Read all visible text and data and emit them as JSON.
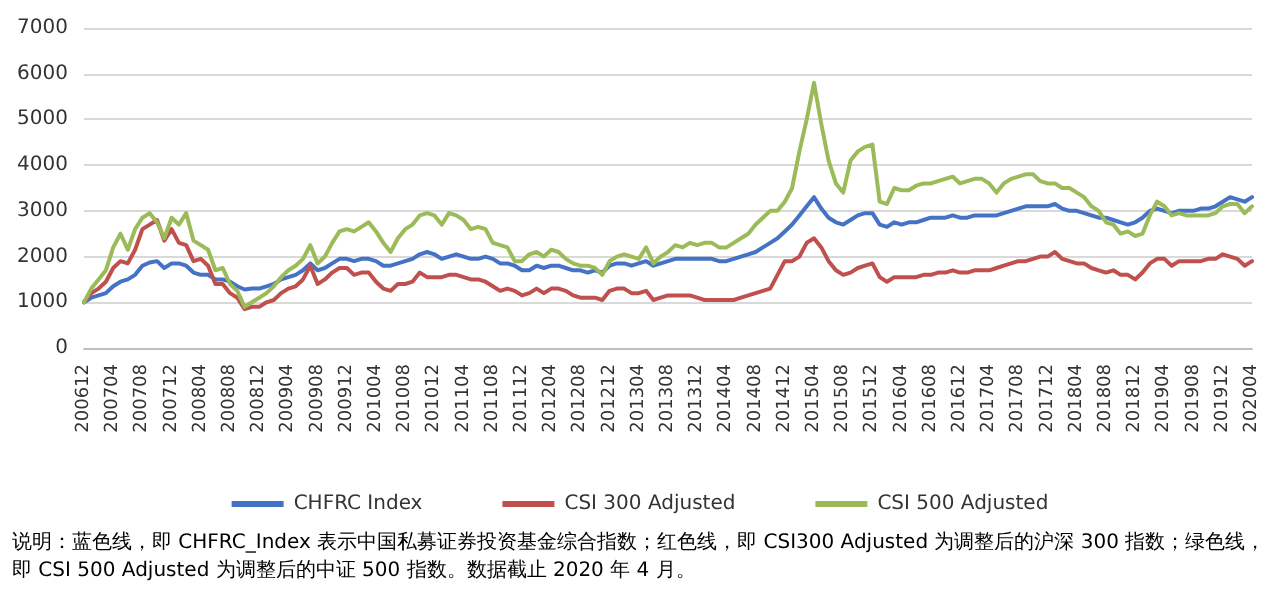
{
  "chart_data": {
    "type": "line",
    "categories": [
      "200612",
      null,
      null,
      null,
      "200704",
      null,
      null,
      null,
      "200708",
      null,
      null,
      null,
      "200712",
      null,
      null,
      null,
      "200804",
      null,
      null,
      null,
      "200808",
      null,
      null,
      null,
      "200812",
      null,
      null,
      null,
      "200904",
      null,
      null,
      null,
      "200908",
      null,
      null,
      null,
      "200912",
      null,
      null,
      null,
      "201004",
      null,
      null,
      null,
      "201008",
      null,
      null,
      null,
      "201012",
      null,
      null,
      null,
      "201104",
      null,
      null,
      null,
      "201108",
      null,
      null,
      null,
      "201112",
      null,
      null,
      null,
      "201204",
      null,
      null,
      null,
      "201208",
      null,
      null,
      null,
      "201212",
      null,
      null,
      null,
      "201304",
      null,
      null,
      null,
      "201308",
      null,
      null,
      null,
      "201312",
      null,
      null,
      null,
      "201404",
      null,
      null,
      null,
      "201408",
      null,
      null,
      null,
      "201412",
      null,
      null,
      null,
      "201504",
      null,
      null,
      null,
      "201508",
      null,
      null,
      null,
      "201512",
      null,
      null,
      null,
      "201604",
      null,
      null,
      null,
      "201608",
      null,
      null,
      null,
      "201612",
      null,
      null,
      null,
      "201704",
      null,
      null,
      null,
      "201708",
      null,
      null,
      null,
      "201712",
      null,
      null,
      null,
      "201804",
      null,
      null,
      null,
      "201808",
      null,
      null,
      null,
      "201812",
      null,
      null,
      null,
      "201904",
      null,
      null,
      null,
      "201908",
      null,
      null,
      null,
      "201912",
      null,
      null,
      null,
      "202004"
    ],
    "series": [
      {
        "name": "CHFRC Index",
        "color": "#4472c4",
        "values": [
          1000,
          1100,
          1150,
          1200,
          1350,
          1450,
          1500,
          1600,
          1800,
          1870,
          1900,
          1750,
          1850,
          1850,
          1800,
          1650,
          1600,
          1600,
          1500,
          1500,
          1450,
          1350,
          1280,
          1300,
          1300,
          1350,
          1400,
          1500,
          1550,
          1600,
          1700,
          1850,
          1700,
          1750,
          1850,
          1950,
          1950,
          1900,
          1950,
          1950,
          1900,
          1800,
          1800,
          1850,
          1900,
          1950,
          2050,
          2100,
          2050,
          1950,
          2000,
          2050,
          2000,
          1950,
          1950,
          2000,
          1950,
          1850,
          1850,
          1800,
          1700,
          1700,
          1800,
          1750,
          1800,
          1800,
          1750,
          1700,
          1700,
          1650,
          1700,
          1650,
          1800,
          1850,
          1850,
          1800,
          1850,
          1900,
          1800,
          1850,
          1900,
          1950,
          1950,
          1950,
          1950,
          1950,
          1950,
          1900,
          1900,
          1950,
          2000,
          2050,
          2100,
          2200,
          2300,
          2400,
          2550,
          2700,
          2900,
          3100,
          3300,
          3050,
          2850,
          2750,
          2700,
          2800,
          2900,
          2950,
          2950,
          2700,
          2650,
          2750,
          2700,
          2750,
          2750,
          2800,
          2850,
          2850,
          2850,
          2900,
          2850,
          2850,
          2900,
          2900,
          2900,
          2900,
          2950,
          3000,
          3050,
          3100,
          3100,
          3100,
          3100,
          3150,
          3050,
          3000,
          3000,
          2950,
          2900,
          2850,
          2850,
          2800,
          2750,
          2700,
          2750,
          2850,
          3000,
          3050,
          3000,
          2950,
          3000,
          3000,
          3000,
          3050,
          3050,
          3100,
          3200,
          3300,
          3250,
          3200,
          3300
        ]
      },
      {
        "name": "CSI 300 Adjusted",
        "color": "#c0504d",
        "values": [
          1000,
          1200,
          1300,
          1450,
          1750,
          1900,
          1850,
          2150,
          2600,
          2700,
          2800,
          2350,
          2600,
          2300,
          2250,
          1900,
          1950,
          1800,
          1400,
          1400,
          1200,
          1100,
          850,
          900,
          900,
          1000,
          1050,
          1200,
          1300,
          1350,
          1500,
          1800,
          1400,
          1500,
          1650,
          1750,
          1750,
          1600,
          1650,
          1650,
          1450,
          1300,
          1250,
          1400,
          1400,
          1450,
          1650,
          1550,
          1550,
          1550,
          1600,
          1600,
          1550,
          1500,
          1500,
          1450,
          1350,
          1250,
          1300,
          1250,
          1150,
          1200,
          1300,
          1200,
          1300,
          1300,
          1250,
          1150,
          1100,
          1100,
          1100,
          1050,
          1250,
          1300,
          1300,
          1200,
          1200,
          1250,
          1050,
          1100,
          1150,
          1150,
          1150,
          1150,
          1100,
          1050,
          1050,
          1050,
          1050,
          1050,
          1100,
          1150,
          1200,
          1250,
          1300,
          1600,
          1900,
          1900,
          2000,
          2300,
          2400,
          2200,
          1900,
          1700,
          1600,
          1650,
          1750,
          1800,
          1850,
          1550,
          1450,
          1550,
          1550,
          1550,
          1550,
          1600,
          1600,
          1650,
          1650,
          1700,
          1650,
          1650,
          1700,
          1700,
          1700,
          1750,
          1800,
          1850,
          1900,
          1900,
          1950,
          2000,
          2000,
          2100,
          1950,
          1900,
          1850,
          1850,
          1750,
          1700,
          1650,
          1700,
          1600,
          1600,
          1500,
          1650,
          1850,
          1950,
          1950,
          1800,
          1900,
          1900,
          1900,
          1900,
          1950,
          1950,
          2050,
          2000,
          1950,
          1800,
          1900
        ]
      },
      {
        "name": "CSI 500 Adjusted",
        "color": "#9bbb59",
        "values": [
          1000,
          1300,
          1500,
          1700,
          2200,
          2500,
          2150,
          2600,
          2850,
          2950,
          2750,
          2400,
          2850,
          2700,
          2950,
          2350,
          2250,
          2150,
          1700,
          1750,
          1400,
          1250,
          900,
          1000,
          1100,
          1200,
          1350,
          1550,
          1700,
          1800,
          1950,
          2250,
          1850,
          2000,
          2300,
          2550,
          2600,
          2550,
          2650,
          2750,
          2550,
          2300,
          2100,
          2400,
          2600,
          2700,
          2900,
          2950,
          2900,
          2700,
          2950,
          2900,
          2800,
          2600,
          2650,
          2600,
          2300,
          2250,
          2200,
          1900,
          1900,
          2050,
          2100,
          2000,
          2150,
          2100,
          1950,
          1850,
          1800,
          1800,
          1750,
          1600,
          1900,
          2000,
          2050,
          2000,
          1950,
          2200,
          1850,
          2000,
          2100,
          2250,
          2200,
          2300,
          2250,
          2300,
          2300,
          2200,
          2200,
          2300,
          2400,
          2500,
          2700,
          2850,
          3000,
          3000,
          3200,
          3500,
          4300,
          5000,
          5800,
          4900,
          4100,
          3600,
          3400,
          4100,
          4300,
          4400,
          4450,
          3200,
          3150,
          3500,
          3450,
          3450,
          3550,
          3600,
          3600,
          3650,
          3700,
          3750,
          3600,
          3650,
          3700,
          3700,
          3600,
          3400,
          3600,
          3700,
          3750,
          3800,
          3800,
          3650,
          3600,
          3600,
          3500,
          3500,
          3400,
          3300,
          3100,
          3000,
          2750,
          2700,
          2500,
          2550,
          2450,
          2500,
          2900,
          3200,
          3100,
          2900,
          2950,
          2900,
          2900,
          2900,
          2900,
          2950,
          3100,
          3150,
          3150,
          2950,
          3100
        ]
      }
    ],
    "ylim": [
      0,
      7000
    ],
    "yticks": [
      0,
      1000,
      2000,
      3000,
      4000,
      5000,
      6000,
      7000
    ],
    "grid": "y",
    "legend": "bottom",
    "marker": "none",
    "line_style": "solid",
    "annotations": [
      "说明：蓝色线，即 CHFRC_Index 表示中国私募证券投资基金综合指数；红色线，即 CSI300 Adjusted 为调整后的沪深 300 指数；绿色线，即 CSI 500 Adjusted 为调整后的中证 500 指数。数据截止 2020 年 4 月。"
    ]
  }
}
